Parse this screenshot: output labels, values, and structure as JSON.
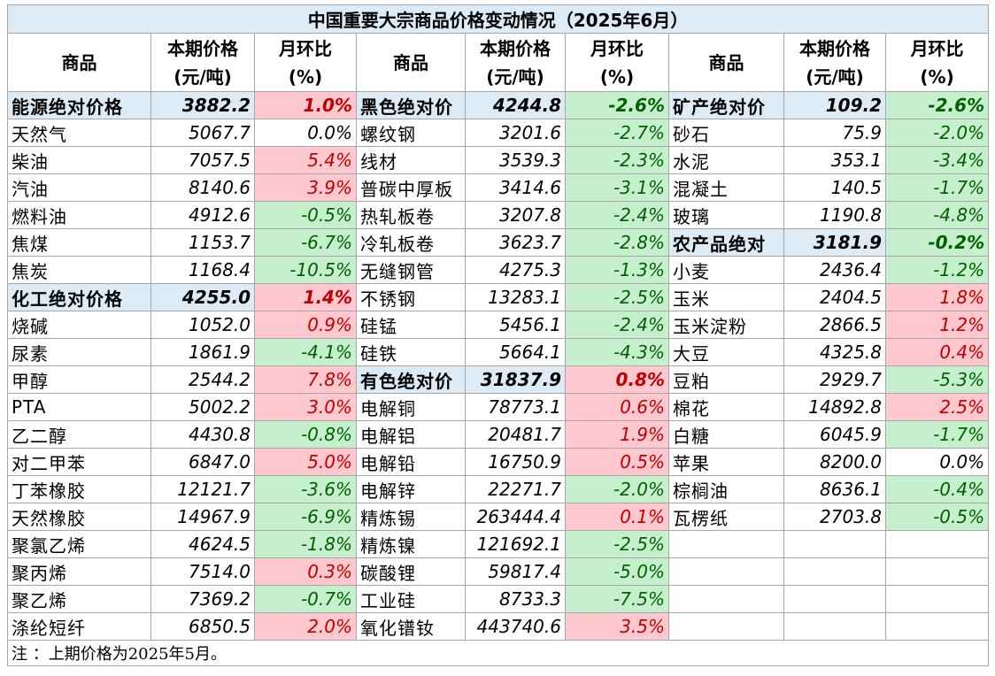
{
  "title": "中国重要大宗商品价格变动情况（2025年6月）",
  "columns": [
    "商品",
    "本期价格\n(元/吨)",
    "月环比\n(%)"
  ],
  "blocks": [
    {
      "rows": [
        [
          "能源绝对价格",
          "3882.2",
          "1.0%"
        ],
        [
          "天然气",
          "5067.7",
          "0.0%"
        ],
        [
          "柴油",
          "7057.5",
          "5.4%"
        ],
        [
          "汽油",
          "8140.6",
          "3.9%"
        ],
        [
          "燃料油",
          "4912.6",
          "-0.5%"
        ],
        [
          "焦煤",
          "1153.7",
          "-6.7%"
        ],
        [
          "焦炭",
          "1168.4",
          "-10.5%"
        ],
        [
          "化工绝对价格",
          "4255.0",
          "1.4%"
        ],
        [
          "烧碱",
          "1052.0",
          "0.9%"
        ],
        [
          "尿素",
          "1861.9",
          "-4.1%"
        ],
        [
          "甲醇",
          "2544.2",
          "7.8%"
        ],
        [
          "PTA",
          "5002.2",
          "3.0%"
        ],
        [
          "乙二醇",
          "4430.8",
          "-0.8%"
        ],
        [
          "对二甲苯",
          "6847.0",
          "5.0%"
        ],
        [
          "丁苯橡胶",
          "12121.7",
          "-3.6%"
        ],
        [
          "天然橡胶",
          "14967.9",
          "-6.9%"
        ],
        [
          "聚氯乙烯",
          "4624.5",
          "-1.8%"
        ],
        [
          "聚丙烯",
          "7514.0",
          "0.3%"
        ],
        [
          "聚乙烯",
          "7369.2",
          "-0.7%"
        ],
        [
          "涤纶短纤",
          "6850.5",
          "2.0%"
        ]
      ]
    },
    {
      "rows": [
        [
          "黑色绝对价",
          "4244.8",
          "-2.6%"
        ],
        [
          "螺纹钢",
          "3201.6",
          "-2.7%"
        ],
        [
          "线材",
          "3539.3",
          "-2.3%"
        ],
        [
          "普碳中厚板",
          "3414.6",
          "-3.1%"
        ],
        [
          "热轧板卷",
          "3207.8",
          "-2.4%"
        ],
        [
          "冷轧板卷",
          "3623.7",
          "-2.8%"
        ],
        [
          "无缝钢管",
          "4275.3",
          "-1.3%"
        ],
        [
          "不锈钢",
          "13283.1",
          "-2.5%"
        ],
        [
          "硅锰",
          "5456.1",
          "-2.4%"
        ],
        [
          "硅铁",
          "5664.1",
          "-4.3%"
        ],
        [
          "有色绝对价",
          "31837.9",
          "0.8%"
        ],
        [
          "电解铜",
          "78773.1",
          "0.6%"
        ],
        [
          "电解铝",
          "20481.7",
          "1.9%"
        ],
        [
          "电解铅",
          "16750.9",
          "0.5%"
        ],
        [
          "电解锌",
          "22271.7",
          "-2.0%"
        ],
        [
          "精炼锡",
          "263444.4",
          "0.1%"
        ],
        [
          "精炼镍",
          "121692.1",
          "-2.5%"
        ],
        [
          "碳酸锂",
          "59817.4",
          "-5.0%"
        ],
        [
          "工业硅",
          "8733.3",
          "-7.5%"
        ],
        [
          "氧化镨钕",
          "443740.6",
          "3.5%"
        ]
      ]
    },
    {
      "rows": [
        [
          "矿产绝对价",
          "109.2",
          "-2.6%"
        ],
        [
          "砂石",
          "75.9",
          "-2.0%"
        ],
        [
          "水泥",
          "353.1",
          "-3.4%"
        ],
        [
          "混凝土",
          "140.5",
          "-1.7%"
        ],
        [
          "玻璃",
          "1190.8",
          "-4.8%"
        ],
        [
          "农产品绝对",
          "3181.9",
          "-0.2%"
        ],
        [
          "小麦",
          "2436.4",
          "-1.2%"
        ],
        [
          "玉米",
          "2404.5",
          "1.8%"
        ],
        [
          "玉米淀粉",
          "2866.5",
          "1.2%"
        ],
        [
          "大豆",
          "4325.8",
          "0.4%"
        ],
        [
          "豆粕",
          "2929.7",
          "-5.3%"
        ],
        [
          "棉花",
          "14892.8",
          "2.5%"
        ],
        [
          "白糖",
          "6045.9",
          "-1.7%"
        ],
        [
          "苹果",
          "8200.0",
          "0.0%"
        ],
        [
          "棕榈油",
          "8636.1",
          "-0.4%"
        ],
        [
          "瓦楞纸",
          "2703.8",
          "-0.5%"
        ]
      ]
    }
  ],
  "note": "注 ：上期价格为2025年5月。"
}
